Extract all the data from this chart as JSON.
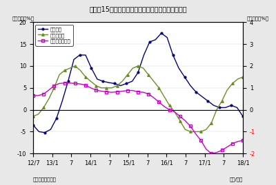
{
  "title": "（図表15）投資信託・金銭の信託・準通貨の伸び率",
  "ylabel_left": "（前年比、%）",
  "ylabel_right": "（前年比、%）",
  "xlabel": "（年/月）",
  "source": "（資料）日本銀行",
  "legend": [
    "投資信託",
    "金銭の信託",
    "準通貨（右軸）"
  ],
  "colors": [
    "#000080",
    "#6b8e23",
    "#cc00cc"
  ],
  "ylim_left": [
    -10,
    20
  ],
  "ylim_right": [
    -2,
    4
  ],
  "yticks_left": [
    -10,
    -5,
    0,
    5,
    10,
    15,
    20
  ],
  "yticks_right": [
    -2,
    -1,
    0,
    1,
    2,
    3,
    4
  ],
  "xtick_labels": [
    "12/7",
    "13/1",
    "7",
    "14/1",
    "7",
    "15/1",
    "7",
    "16/1",
    "7",
    "17/1",
    "7",
    "18/1"
  ],
  "x_values": [
    0,
    6,
    12,
    18,
    24,
    30,
    36,
    42,
    48,
    54,
    60,
    66
  ],
  "investment_trust": [
    -3.5,
    -5.0,
    -5.2,
    -4.5,
    -2.0,
    2.0,
    6.5,
    11.5,
    12.5,
    12.5,
    9.5,
    7.0,
    6.5,
    6.2,
    6.0,
    5.5,
    6.0,
    6.5,
    8.5,
    12.5,
    15.5,
    16.0,
    17.5,
    16.5,
    12.5,
    9.5,
    7.5,
    5.5,
    4.0,
    3.0,
    2.0,
    1.0,
    0.5,
    0.5,
    1.0,
    0.5,
    -1.5
  ],
  "kinsen_trust": [
    -1.5,
    -1.0,
    0.5,
    2.5,
    5.0,
    8.0,
    9.0,
    9.5,
    10.0,
    9.0,
    7.5,
    6.5,
    5.5,
    5.0,
    5.0,
    5.0,
    5.5,
    6.5,
    8.0,
    9.5,
    10.0,
    9.5,
    8.0,
    6.5,
    5.0,
    3.0,
    1.0,
    -0.5,
    -2.5,
    -4.5,
    -5.0,
    -5.0,
    -5.0,
    -4.5,
    -3.0,
    0.0,
    2.0,
    4.5,
    6.0,
    7.0,
    7.5
  ],
  "jun_tsuka": [
    0.65,
    0.65,
    0.72,
    0.9,
    1.1,
    1.2,
    1.22,
    1.22,
    1.2,
    1.18,
    1.12,
    1.0,
    0.9,
    0.85,
    0.82,
    0.8,
    0.82,
    0.85,
    0.88,
    0.88,
    0.82,
    0.8,
    0.72,
    0.55,
    0.35,
    0.15,
    0.0,
    -0.1,
    -0.3,
    -0.5,
    -0.75,
    -1.1,
    -1.4,
    -1.8,
    -2.0,
    -1.95,
    -1.85,
    -1.7,
    -1.55,
    -1.45,
    -1.4
  ],
  "background_color": "#e8e8e8",
  "plot_bg": "#ffffff"
}
